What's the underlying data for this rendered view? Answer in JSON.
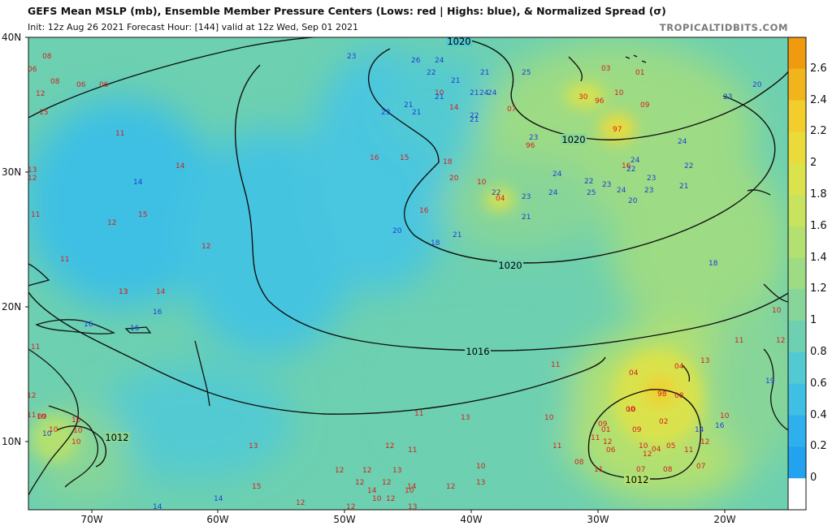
{
  "header": {
    "title": "GEFS Mean MSLP (mb), Ensemble Member Pressure Centers (Lows: red | Highs: blue), & Normalized Spread (σ)",
    "subtitle": "Init: 12z Aug 26 2021   Forecast Hour: [144]   valid at 12z Wed, Sep 01 2021",
    "brand": "TROPICALTIDBITS.COM"
  },
  "axes": {
    "lat_labels": [
      "40N",
      "30N",
      "20N",
      "10N"
    ],
    "lon_labels": [
      "70W",
      "60W",
      "50W",
      "40W",
      "30W",
      "20W"
    ]
  },
  "colorbar": {
    "labels": [
      "2.6",
      "2.4",
      "2.2",
      "2",
      "1.8",
      "1.6",
      "1.4",
      "1.2",
      "1",
      "0.8",
      "0.6",
      "0.4",
      "0.2",
      "0"
    ],
    "colors": [
      "#f09a10",
      "#f2b41c",
      "#f2cd2c",
      "#ebdb3a",
      "#dae24c",
      "#c8e35e",
      "#b3e070",
      "#9ddb84",
      "#87d598",
      "#6dd0b0",
      "#52cad2",
      "#3ec0e4",
      "#2fb0ee",
      "#22a3f0"
    ]
  },
  "isobars": [
    "1020",
    "1020",
    "1020",
    "1016",
    "1012",
    "1012"
  ],
  "lows": [
    "08",
    "06",
    "08",
    "06",
    "06",
    "12",
    "15",
    "11",
    "14",
    "13",
    "12",
    "11",
    "12",
    "15",
    "12",
    "11",
    "13",
    "14",
    "13",
    "11",
    "12",
    "11",
    "10",
    "16",
    "15",
    "18",
    "20",
    "16",
    "14",
    "10",
    "10",
    "04",
    "07",
    "03",
    "01",
    "96",
    "10",
    "09",
    "97",
    "30",
    "96",
    "16",
    "04",
    "10",
    "04",
    "00",
    "09",
    "02",
    "98",
    "08",
    "01",
    "12",
    "09",
    "06",
    "11",
    "10",
    "04",
    "05",
    "11",
    "12",
    "07",
    "07",
    "08",
    "11",
    "08",
    "12",
    "13",
    "11",
    "10",
    "10",
    "11",
    "11",
    "12",
    "13",
    "12",
    "13",
    "12",
    "12",
    "12",
    "14",
    "10",
    "12",
    "13",
    "14",
    "12",
    "12",
    "13",
    "10",
    "09",
    "10",
    "10",
    "10",
    "10",
    "12",
    "15",
    "13",
    "11",
    "10",
    "12",
    "10",
    "11"
  ],
  "highs": [
    "23",
    "26",
    "24",
    "22",
    "21",
    "21",
    "21",
    "21",
    "21",
    "24",
    "24",
    "25",
    "23",
    "21",
    "21",
    "22",
    "23",
    "24",
    "23",
    "24",
    "22",
    "25",
    "23",
    "24",
    "23",
    "20",
    "21",
    "20",
    "18",
    "21",
    "22",
    "24",
    "22",
    "23",
    "22",
    "21",
    "24",
    "23",
    "20",
    "18",
    "14",
    "16",
    "16",
    "16",
    "14",
    "14",
    "16",
    "19",
    "14",
    "10"
  ]
}
